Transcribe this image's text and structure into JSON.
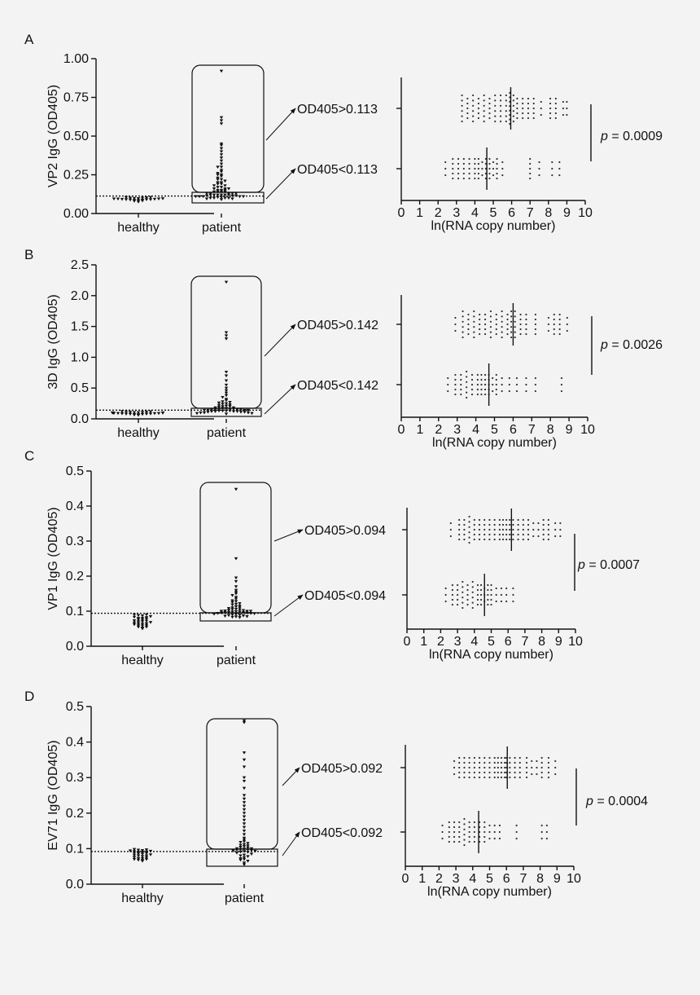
{
  "chart_data": [
    {
      "panel": "A",
      "type": "scatter",
      "ylabel": "VP2 IgG (OD405)",
      "yticks": [
        "0.00",
        "0.25",
        "0.50",
        "0.75",
        "1.00"
      ],
      "ylim": [
        0,
        1.0
      ],
      "categories": [
        "healthy",
        "patient"
      ],
      "threshold": 0.113,
      "healthy_values": [
        0.075,
        0.08,
        0.082,
        0.085,
        0.085,
        0.087,
        0.088,
        0.09,
        0.09,
        0.09,
        0.092,
        0.093,
        0.094,
        0.095,
        0.095,
        0.096,
        0.097,
        0.098,
        0.1,
        0.1,
        0.102,
        0.104,
        0.105
      ],
      "patient_values": [
        0.92,
        0.62,
        0.6,
        0.58,
        0.45,
        0.44,
        0.42,
        0.4,
        0.38,
        0.36,
        0.34,
        0.32,
        0.3,
        0.3,
        0.28,
        0.27,
        0.26,
        0.25,
        0.25,
        0.24,
        0.23,
        0.22,
        0.22,
        0.21,
        0.2,
        0.2,
        0.19,
        0.19,
        0.18,
        0.18,
        0.17,
        0.17,
        0.16,
        0.16,
        0.16,
        0.15,
        0.15,
        0.15,
        0.14,
        0.14,
        0.14,
        0.14,
        0.13,
        0.13,
        0.13,
        0.13,
        0.13,
        0.12,
        0.12,
        0.12,
        0.12,
        0.12,
        0.12,
        0.115,
        0.115,
        0.115,
        0.11,
        0.11,
        0.11,
        0.11,
        0.11,
        0.105,
        0.105,
        0.1,
        0.1,
        0.1,
        0.1,
        0.095,
        0.095,
        0.09
      ],
      "high_label": "OD405>0.113",
      "low_label": "OD405<0.113",
      "xlabel": "ln(RNA copy number)",
      "xticks": [
        "0",
        "1",
        "2",
        "3",
        "4",
        "5",
        "6",
        "7",
        "8",
        "9",
        "10"
      ],
      "xlim": [
        0,
        10
      ],
      "high_rna": [
        3.3,
        3.3,
        3.3,
        3.6,
        3.6,
        3.9,
        3.9,
        3.9,
        4.2,
        4.2,
        4.5,
        4.5,
        4.5,
        4.8,
        4.8,
        5.1,
        5.1,
        5.1,
        5.4,
        5.4,
        5.4,
        5.7,
        5.7,
        5.7,
        5.9,
        5.9,
        5.9,
        5.9,
        6.1,
        6.1,
        6.1,
        6.3,
        6.3,
        6.6,
        6.6,
        6.9,
        6.9,
        7.2,
        7.2,
        7.6,
        8.1,
        8.1,
        8.4,
        8.4,
        8.8,
        9.0
      ],
      "high_median": 5.95,
      "low_rna": [
        2.4,
        2.8,
        2.8,
        3.1,
        3.1,
        3.4,
        3.4,
        3.7,
        3.7,
        4.0,
        4.0,
        4.2,
        4.2,
        4.4,
        4.6,
        4.6,
        4.8,
        4.8,
        5.0,
        5.2,
        5.2,
        5.5,
        7.0,
        7.0,
        7.5,
        8.2,
        8.6
      ],
      "low_median": 4.65,
      "pvalue": "= 0.0009"
    },
    {
      "panel": "B",
      "type": "scatter",
      "ylabel": "3D IgG (OD405)",
      "yticks": [
        "0.0",
        "0.5",
        "1.0",
        "1.5",
        "2.0",
        "2.5"
      ],
      "ylim": [
        0,
        2.5
      ],
      "categories": [
        "healthy",
        "patient"
      ],
      "threshold": 0.142,
      "healthy_values": [
        0.06,
        0.065,
        0.07,
        0.072,
        0.075,
        0.078,
        0.08,
        0.08,
        0.082,
        0.085,
        0.088,
        0.09,
        0.09,
        0.092,
        0.095,
        0.097,
        0.1,
        0.1,
        0.103,
        0.105,
        0.108,
        0.11,
        0.112,
        0.115,
        0.118,
        0.12
      ],
      "patient_values": [
        2.22,
        1.4,
        1.35,
        1.3,
        0.76,
        0.7,
        0.62,
        0.55,
        0.5,
        0.46,
        0.42,
        0.38,
        0.35,
        0.32,
        0.3,
        0.28,
        0.27,
        0.26,
        0.25,
        0.24,
        0.23,
        0.22,
        0.21,
        0.2,
        0.2,
        0.19,
        0.18,
        0.18,
        0.17,
        0.17,
        0.16,
        0.16,
        0.16,
        0.15,
        0.15,
        0.15,
        0.15,
        0.14,
        0.14,
        0.14,
        0.14,
        0.13,
        0.13,
        0.13,
        0.13,
        0.12,
        0.12,
        0.12,
        0.12,
        0.11,
        0.11,
        0.11,
        0.1,
        0.1,
        0.1,
        0.09,
        0.09,
        0.08
      ],
      "high_label": "OD405>0.142",
      "low_label": "OD405<0.142",
      "xlabel": "ln(RNA copy number)",
      "xticks": [
        "0",
        "1",
        "2",
        "3",
        "4",
        "5",
        "6",
        "7",
        "8",
        "9",
        "10"
      ],
      "xlim": [
        0,
        10
      ],
      "high_rna": [
        2.9,
        3.3,
        3.3,
        3.3,
        3.6,
        3.6,
        3.9,
        3.9,
        3.9,
        4.2,
        4.2,
        4.5,
        4.5,
        4.8,
        4.8,
        4.8,
        5.1,
        5.1,
        5.4,
        5.4,
        5.4,
        5.7,
        5.7,
        5.9,
        5.9,
        5.9,
        6.1,
        6.1,
        6.1,
        6.4,
        6.4,
        6.7,
        6.7,
        7.2,
        7.2,
        7.9,
        8.2,
        8.2,
        8.5,
        8.5,
        8.9
      ],
      "high_median": 6.0,
      "low_rna": [
        2.5,
        2.9,
        2.9,
        3.2,
        3.2,
        3.5,
        3.5,
        3.5,
        3.8,
        3.8,
        4.1,
        4.1,
        4.3,
        4.3,
        4.5,
        4.5,
        4.7,
        4.7,
        4.9,
        5.1,
        5.1,
        5.4,
        5.8,
        6.2,
        6.7,
        7.2,
        8.6
      ],
      "low_median": 4.7,
      "pvalue": "= 0.0026"
    },
    {
      "panel": "C",
      "type": "scatter",
      "ylabel": "VP1 IgG (OD405)",
      "yticks": [
        "0.0",
        "0.1",
        "0.2",
        "0.3",
        "0.4",
        "0.5"
      ],
      "ylim": [
        0,
        0.5
      ],
      "categories": [
        "healthy",
        "patient"
      ],
      "threshold": 0.094,
      "healthy_values": [
        0.05,
        0.052,
        0.055,
        0.055,
        0.058,
        0.06,
        0.06,
        0.062,
        0.063,
        0.065,
        0.065,
        0.067,
        0.068,
        0.07,
        0.07,
        0.072,
        0.073,
        0.075,
        0.076,
        0.078,
        0.08,
        0.08,
        0.082,
        0.083,
        0.085,
        0.087,
        0.088,
        0.09,
        0.09
      ],
      "patient_values": [
        0.448,
        0.25,
        0.195,
        0.185,
        0.17,
        0.16,
        0.155,
        0.15,
        0.145,
        0.14,
        0.135,
        0.13,
        0.128,
        0.125,
        0.122,
        0.12,
        0.118,
        0.115,
        0.113,
        0.11,
        0.11,
        0.108,
        0.106,
        0.105,
        0.104,
        0.103,
        0.102,
        0.101,
        0.1,
        0.1,
        0.1,
        0.099,
        0.098,
        0.098,
        0.097,
        0.096,
        0.096,
        0.095,
        0.095,
        0.094,
        0.094,
        0.093,
        0.092,
        0.091,
        0.09,
        0.089,
        0.088,
        0.087,
        0.086,
        0.085,
        0.084,
        0.083,
        0.082
      ],
      "high_label": "OD405>0.094",
      "low_label": "OD405<0.094",
      "xlabel": "ln(RNA copy number)",
      "xticks": [
        "0",
        "1",
        "2",
        "3",
        "4",
        "5",
        "6",
        "7",
        "8",
        "9",
        "10"
      ],
      "xlim": [
        0,
        10
      ],
      "high_rna": [
        2.6,
        3.1,
        3.1,
        3.4,
        3.4,
        3.7,
        3.7,
        3.7,
        4.0,
        4.0,
        4.3,
        4.3,
        4.6,
        4.6,
        4.9,
        4.9,
        5.2,
        5.2,
        5.5,
        5.5,
        5.7,
        5.7,
        5.9,
        5.9,
        6.1,
        6.1,
        6.3,
        6.3,
        6.6,
        6.6,
        6.9,
        6.9,
        7.2,
        7.2,
        7.5,
        7.8,
        8.1,
        8.1,
        8.4,
        8.4,
        8.8,
        9.1
      ],
      "high_median": 6.2,
      "low_rna": [
        2.3,
        2.7,
        2.7,
        3.0,
        3.0,
        3.3,
        3.3,
        3.3,
        3.6,
        3.6,
        3.9,
        3.9,
        3.9,
        4.2,
        4.2,
        4.4,
        4.4,
        4.6,
        4.8,
        4.8,
        5.0,
        5.0,
        5.3,
        5.6,
        5.9,
        6.3
      ],
      "low_median": 4.6,
      "pvalue": "= 0.0007"
    },
    {
      "panel": "D",
      "type": "scatter",
      "ylabel": "EV71 IgG (OD405)",
      "yticks": [
        "0.0",
        "0.1",
        "0.2",
        "0.3",
        "0.4",
        "0.5"
      ],
      "ylim": [
        0,
        0.5
      ],
      "categories": [
        "healthy",
        "patient"
      ],
      "threshold": 0.092,
      "healthy_values": [
        0.065,
        0.067,
        0.068,
        0.07,
        0.07,
        0.072,
        0.073,
        0.075,
        0.076,
        0.078,
        0.08,
        0.08,
        0.082,
        0.083,
        0.085,
        0.086,
        0.087,
        0.088,
        0.09,
        0.09,
        0.091,
        0.092,
        0.093,
        0.094,
        0.095,
        0.096,
        0.097,
        0.098
      ],
      "patient_values": [
        0.46,
        0.455,
        0.37,
        0.35,
        0.33,
        0.3,
        0.29,
        0.27,
        0.25,
        0.24,
        0.23,
        0.22,
        0.21,
        0.2,
        0.19,
        0.18,
        0.17,
        0.16,
        0.15,
        0.14,
        0.13,
        0.125,
        0.12,
        0.118,
        0.115,
        0.112,
        0.11,
        0.108,
        0.106,
        0.104,
        0.102,
        0.1,
        0.1,
        0.099,
        0.098,
        0.097,
        0.096,
        0.095,
        0.094,
        0.093,
        0.092,
        0.091,
        0.09,
        0.088,
        0.085,
        0.082,
        0.08,
        0.078,
        0.075,
        0.072,
        0.07,
        0.068,
        0.065,
        0.06,
        0.055
      ],
      "high_label": "OD405>0.092",
      "low_label": "OD405<0.092",
      "xlabel": "ln(RNA copy number)",
      "xticks": [
        "0",
        "1",
        "2",
        "3",
        "4",
        "5",
        "6",
        "7",
        "8",
        "9",
        "10"
      ],
      "xlim": [
        0,
        10
      ],
      "high_rna": [
        2.9,
        3.2,
        3.2,
        3.5,
        3.5,
        3.8,
        3.8,
        4.1,
        4.1,
        4.4,
        4.4,
        4.7,
        4.7,
        5.0,
        5.0,
        5.3,
        5.3,
        5.5,
        5.5,
        5.7,
        5.7,
        5.9,
        5.9,
        6.0,
        6.0,
        6.2,
        6.2,
        6.5,
        6.5,
        6.8,
        6.8,
        7.2,
        7.2,
        7.5,
        7.8,
        8.1,
        8.1,
        8.5,
        8.5,
        8.9
      ],
      "high_median": 6.05,
      "low_rna": [
        2.2,
        2.6,
        2.6,
        2.9,
        2.9,
        3.2,
        3.2,
        3.5,
        3.5,
        3.5,
        3.8,
        3.8,
        4.1,
        4.1,
        4.4,
        4.4,
        4.7,
        4.7,
        5.0,
        5.3,
        5.6,
        6.6,
        8.1,
        8.4
      ],
      "low_median": 4.35,
      "pvalue": "= 0.0004"
    }
  ],
  "p_symbol": "p"
}
